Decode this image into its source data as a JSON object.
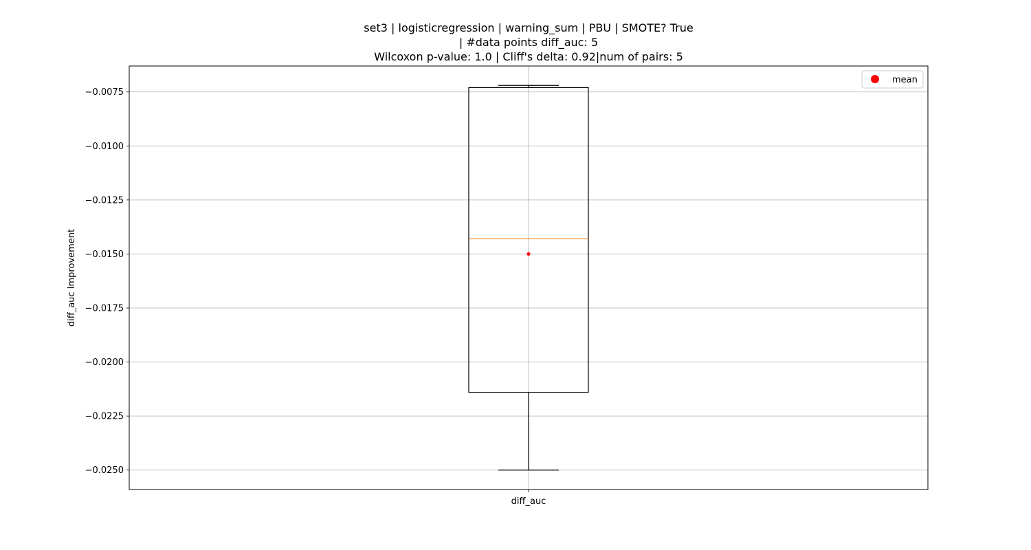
{
  "chart_data": {
    "type": "box",
    "title_lines": [
      "set3 | logisticregression | warning_sum | PBU | SMOTE? True",
      "| #data points diff_auc: 5",
      "Wilcoxon p-value: 1.0 | Cliff's delta: 0.92|num of pairs: 5"
    ],
    "xlabel": "",
    "ylabel": "diff_auc Improvement",
    "categories": [
      "diff_auc"
    ],
    "ylim": [
      -0.0259,
      -0.0063
    ],
    "yticks": [
      -0.0075,
      -0.01,
      -0.0125,
      -0.015,
      -0.0175,
      -0.02,
      -0.0225,
      -0.025
    ],
    "ytick_labels": [
      "−0.0075",
      "−0.0100",
      "−0.0125",
      "−0.0150",
      "−0.0175",
      "−0.0200",
      "−0.0225",
      "−0.0250"
    ],
    "grid": true,
    "boxes": [
      {
        "category": "diff_auc",
        "whisker_low": -0.025,
        "q1": -0.0214,
        "median": -0.0143,
        "q3": -0.0073,
        "whisker_high": -0.0072,
        "mean": -0.015
      }
    ],
    "legend": {
      "position": "top-right",
      "entries": [
        {
          "label": "mean",
          "marker": "circle",
          "color": "#ff0000"
        }
      ]
    },
    "colors": {
      "box": "#000000",
      "median": "#ff7f0e",
      "mean": "#ff0000",
      "grid": "#b0b0b0"
    }
  }
}
